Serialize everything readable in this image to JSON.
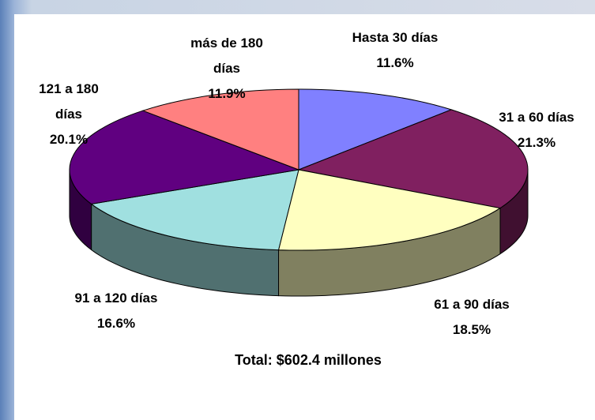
{
  "chart_data": {
    "type": "pie3d",
    "categories": [
      "Hasta 30 días",
      "31 a 60 días",
      "61 a 90 días",
      "91 a 120 días",
      "121 a 180 días",
      "más de 180 días"
    ],
    "values": [
      11.6,
      21.3,
      18.5,
      16.6,
      20.1,
      11.9
    ],
    "value_labels": [
      "11.6%",
      "21.3%",
      "18.5%",
      "16.6%",
      "20.1%",
      "11.9%"
    ],
    "colors": [
      "#8080ff",
      "#802060",
      "#ffffc0",
      "#a0e0e0",
      "#600080",
      "#ff8080"
    ],
    "annotation": "Total: $602.4 millones"
  }
}
